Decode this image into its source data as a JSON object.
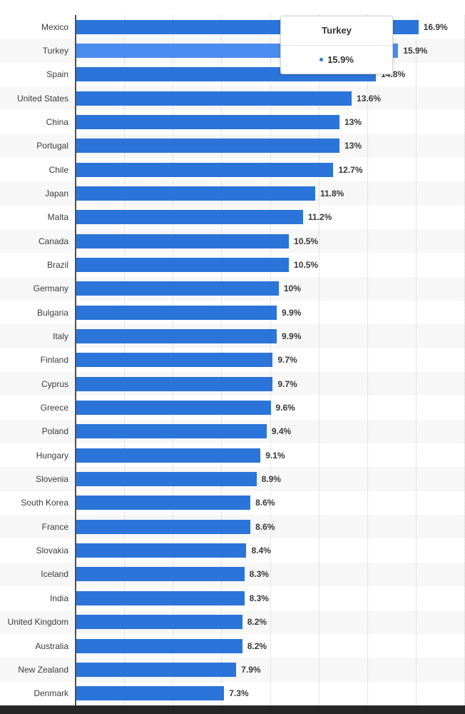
{
  "chart_data": {
    "type": "bar",
    "orientation": "horizontal",
    "title": "",
    "xlabel": "",
    "ylabel": "",
    "value_suffix": "%",
    "categories": [
      "Mexico",
      "Turkey",
      "Spain",
      "United States",
      "China",
      "Portugal",
      "Chile",
      "Japan",
      "Malta",
      "Canada",
      "Brazil",
      "Germany",
      "Bulgaria",
      "Italy",
      "Finland",
      "Cyprus",
      "Greece",
      "Poland",
      "Hungary",
      "Slovenia",
      "South Korea",
      "France",
      "Slovakia",
      "Iceland",
      "India",
      "United Kingdom",
      "Australia",
      "New Zealand",
      "Denmark"
    ],
    "values": [
      16.9,
      15.9,
      14.8,
      13.6,
      13,
      13,
      12.7,
      11.8,
      11.2,
      10.5,
      10.5,
      10,
      9.9,
      9.9,
      9.7,
      9.7,
      9.6,
      9.4,
      9.1,
      8.9,
      8.6,
      8.6,
      8.4,
      8.3,
      8.3,
      8.2,
      8.2,
      7.9,
      7.3
    ],
    "value_labels": [
      "16.9%",
      "15.9%",
      "14.8%",
      "13.6%",
      "13%",
      "13%",
      "12.7%",
      "11.8%",
      "11.2%",
      "10.5%",
      "10.5%",
      "10%",
      "9.9%",
      "9.9%",
      "9.7%",
      "9.7%",
      "9.6%",
      "9.4%",
      "9.1%",
      "8.9%",
      "8.6%",
      "8.6%",
      "8.4%",
      "8.3%",
      "8.3%",
      "8.2%",
      "8.2%",
      "7.9%",
      "7.3%"
    ],
    "highlighted_category": "Turkey",
    "xlim": [
      0,
      19.2
    ],
    "grid": true,
    "gridline_count": 8,
    "legend": "none",
    "bar_color": "#2b74da",
    "highlight_bar_color": "#4a8bf0"
  },
  "tooltip": {
    "title": "Turkey",
    "value": "15.9%",
    "marker_color": "#2b74da"
  },
  "colors": {
    "axis": "#515151",
    "zebra_band": "#f7f7f7",
    "gridline": "#cfcfcf",
    "category_text": "#3c3c3c",
    "value_text": "#383838",
    "tooltip_border": "#d6d6d6",
    "bottom_strip": "#262626",
    "background": "#ffffff"
  }
}
